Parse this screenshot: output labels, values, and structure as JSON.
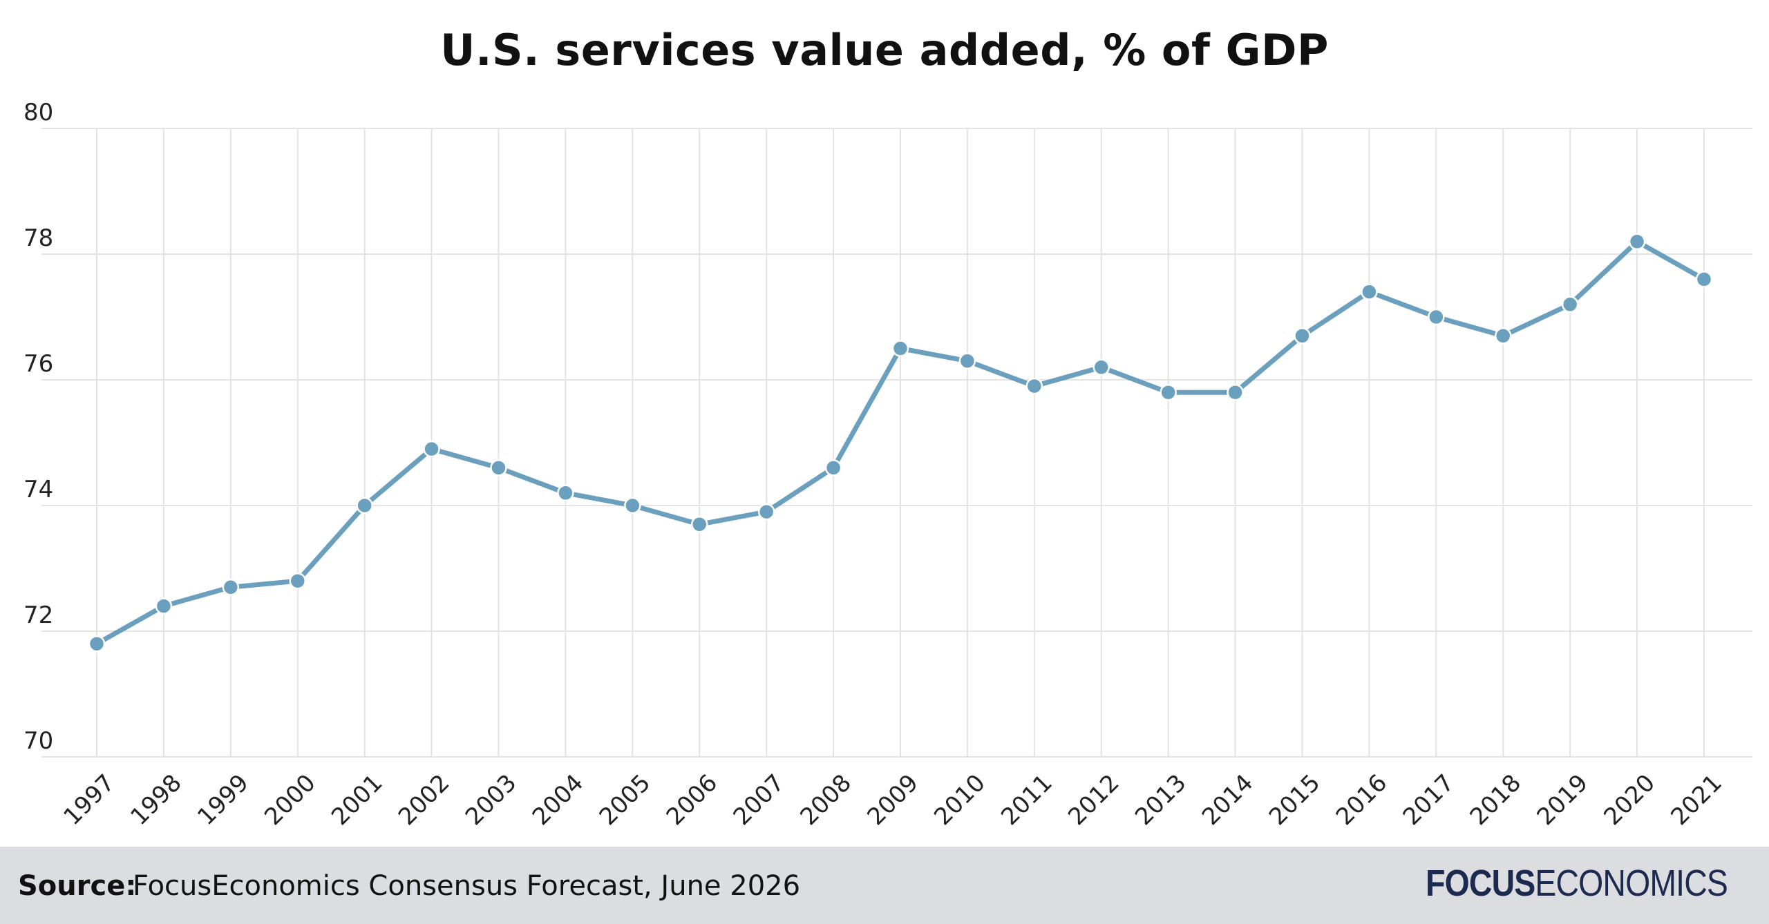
{
  "chart_data": {
    "type": "line",
    "title": "U.S. services value added, % of GDP",
    "xlabel": "",
    "ylabel": "",
    "categories": [
      "1997",
      "1998",
      "1999",
      "2000",
      "2001",
      "2002",
      "2003",
      "2004",
      "2005",
      "2006",
      "2007",
      "2008",
      "2009",
      "2010",
      "2011",
      "2012",
      "2013",
      "2014",
      "2015",
      "2016",
      "2017",
      "2018",
      "2019",
      "2020",
      "2021"
    ],
    "series": [
      {
        "values": [
          71.8,
          72.4,
          72.7,
          72.8,
          74.0,
          74.9,
          74.6,
          74.2,
          74.0,
          73.7,
          73.9,
          74.6,
          76.5,
          76.3,
          75.9,
          76.2,
          75.8,
          75.8,
          76.7,
          77.4,
          77.0,
          76.7,
          77.2,
          78.2,
          77.6
        ],
        "color": "#6a9fbe"
      }
    ],
    "ylim": [
      70,
      80
    ],
    "yticks": [
      70,
      72,
      74,
      76,
      78,
      80
    ],
    "grid": true,
    "legend": "none"
  },
  "footer": {
    "source_label": "Source:",
    "source_text": "FocusEconomics Consensus Forecast, June 2026",
    "logo_bold": "FOCUS",
    "logo_light": "ECONOMICS"
  },
  "colors": {
    "line": "#6a9fbe",
    "grid": "#e3e3e3",
    "footer_bg": "#dcdde0",
    "logo": "#1b2a4e"
  }
}
